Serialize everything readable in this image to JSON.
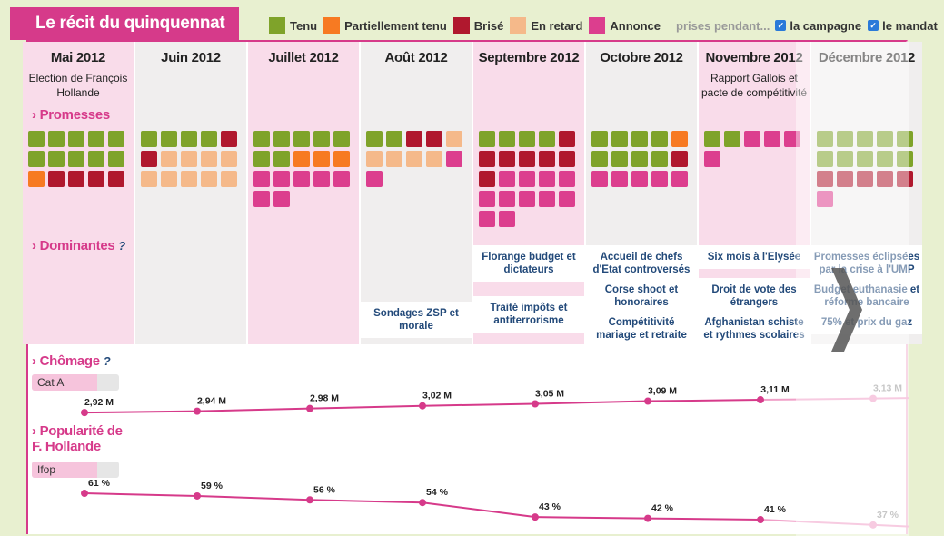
{
  "app": {
    "title": "Le récit du quinquennat"
  },
  "legend": {
    "items": [
      {
        "label": "Tenu",
        "color": "#7fa32a"
      },
      {
        "label": "Partiellement tenu",
        "color": "#f77a22"
      },
      {
        "label": "Brisé",
        "color": "#b0182e"
      },
      {
        "label": "En retard",
        "color": "#f5b98a"
      },
      {
        "label": "Annonce",
        "color": "#dc3e8e"
      }
    ],
    "prises_label": "prises pendant...",
    "filters": [
      {
        "label": "la campagne",
        "checked": true
      },
      {
        "label": "le mandat",
        "checked": true
      }
    ]
  },
  "sections": {
    "promesses": "› Promesses",
    "dominantes": "› Dominantes",
    "dominantes_help": "?",
    "chomage": "› Chômage",
    "chomage_help": "?",
    "chomage_select": "Cat A",
    "popularite_line1": "› Popularité de",
    "popularite_line2": "F. Hollande",
    "popularite_select": "Ifop"
  },
  "columns": [
    {
      "month": "Mai 2012",
      "event": "Election de François Hollande",
      "bg": "pink",
      "squares": [
        "G",
        "G",
        "G",
        "G",
        "G",
        "G",
        "G",
        "G",
        "G",
        "G",
        "O",
        "R",
        "R",
        "R",
        "R"
      ],
      "dominantes": []
    },
    {
      "month": "Juin 2012",
      "event": "",
      "bg": "grey",
      "squares": [
        "G",
        "G",
        "G",
        "G",
        "R",
        "R",
        "P",
        "P",
        "P",
        "P",
        "P",
        "P",
        "P",
        "P",
        "P"
      ],
      "dominantes": []
    },
    {
      "month": "Juillet 2012",
      "event": "",
      "bg": "pink",
      "squares": [
        "G",
        "G",
        "G",
        "G",
        "G",
        "G",
        "G",
        "O",
        "O",
        "O",
        "M",
        "M",
        "M",
        "M",
        "M",
        "M",
        "M"
      ],
      "dominantes": []
    },
    {
      "month": "Août 2012",
      "event": "",
      "bg": "grey",
      "squares": [
        "G",
        "G",
        "R",
        "R",
        "P",
        "P",
        "P",
        "P",
        "P",
        "M",
        "M"
      ],
      "dominantes": [
        "Sondages ZSP et morale"
      ]
    },
    {
      "month": "Septembre 2012",
      "event": "",
      "bg": "pink",
      "squares": [
        "G",
        "G",
        "G",
        "G",
        "R",
        "R",
        "R",
        "R",
        "R",
        "R",
        "R",
        "M",
        "M",
        "M",
        "M",
        "M",
        "M",
        "M",
        "M",
        "M",
        "M",
        "M"
      ],
      "dominantes": [
        "Florange budget et dictateurs",
        "Traité impôts et antiterrorisme"
      ]
    },
    {
      "month": "Octobre 2012",
      "event": "",
      "bg": "grey",
      "squares": [
        "G",
        "G",
        "G",
        "G",
        "O",
        "G",
        "G",
        "G",
        "G",
        "R",
        "M",
        "M",
        "M",
        "M",
        "M"
      ],
      "dominantes": [
        "Accueil de chefs d'Etat controversés",
        "Corse shoot et honoraires",
        "Compétitivité mariage et retraite"
      ]
    },
    {
      "month": "Novembre 2012",
      "event": "Rapport Gallois et pacte de compétitivité",
      "bg": "pink",
      "squares": [
        "G",
        "G",
        "M",
        "M",
        "M",
        "M"
      ],
      "dominantes": [
        "Six mois à l'Elysée",
        "Droit de vote des étrangers",
        "Afghanistan schiste et rythmes scolaires"
      ]
    },
    {
      "month": "Décembre 2012",
      "event": "",
      "bg": "grey",
      "squares": [
        "G",
        "G",
        "G",
        "G",
        "G",
        "G",
        "G",
        "G",
        "G",
        "G",
        "R",
        "R",
        "R",
        "R",
        "R",
        "M"
      ],
      "dominantes": [
        "Promesses éclipsées par la crise à l'UMP",
        "Budget euthanasie et réforme bancaire",
        "75% et prix du gaz"
      ]
    }
  ],
  "square_colors": {
    "G": "#7fa32a",
    "O": "#f77a22",
    "R": "#b0182e",
    "P": "#f5b98a",
    "M": "#dc3e8e"
  },
  "chart_data": [
    {
      "type": "line",
      "title": "Chômage",
      "series": [
        {
          "name": "Cat A",
          "values": [
            2.92,
            2.94,
            2.98,
            3.02,
            3.05,
            3.09,
            3.11,
            3.13
          ],
          "labels": [
            "2,92 M",
            "2,94 M",
            "2,98 M",
            "3,02 M",
            "3,05 M",
            "3,09 M",
            "3,11 M",
            "3,13 M"
          ]
        }
      ],
      "categories": [
        "Mai 2012",
        "Juin 2012",
        "Juillet 2012",
        "Août 2012",
        "Septembre 2012",
        "Octobre 2012",
        "Novembre 2012",
        "Décembre 2012"
      ],
      "ylim": [
        2.8,
        3.3
      ],
      "color": "#d63a8a"
    },
    {
      "type": "line",
      "title": "Popularité de F. Hollande",
      "series": [
        {
          "name": "Ifop",
          "values": [
            61,
            59,
            56,
            54,
            43,
            42,
            41,
            37
          ],
          "labels": [
            "61 %",
            "59 %",
            "56 %",
            "54 %",
            "43 %",
            "42 %",
            "41 %",
            "37 %"
          ]
        }
      ],
      "categories": [
        "Mai 2012",
        "Juin 2012",
        "Juillet 2012",
        "Août 2012",
        "Septembre 2012",
        "Octobre 2012",
        "Novembre 2012",
        "Décembre 2012"
      ],
      "ylim": [
        30,
        70
      ],
      "color": "#d63a8a"
    }
  ],
  "nav": {
    "next_label": "›"
  }
}
